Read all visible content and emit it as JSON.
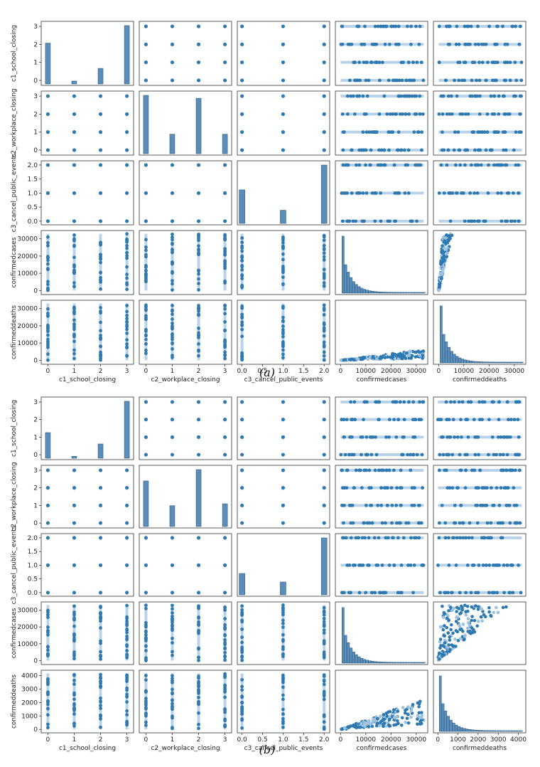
{
  "chart_data": [
    {
      "type": "scatter",
      "kind": "pairplot",
      "caption": "(a)",
      "variables": [
        "c1_school_closing",
        "c2_workplace_closing",
        "c3_cancel_public_events",
        "confirmedcases",
        "confirmeddeaths"
      ],
      "row_labels": [
        "c1_school_closing",
        "c2_workplace_closing",
        "c3_cancel_public_events",
        "confirmedcases",
        "confirmeddeaths"
      ],
      "col_labels": [
        "c1_school_closing",
        "c2_workplace_closing",
        "c3_cancel_public_events",
        "confirmedcases",
        "confirmeddeaths"
      ],
      "row_ticks": [
        [
          "0",
          "1",
          "2",
          "3"
        ],
        [
          "0",
          "1",
          "2",
          "3"
        ],
        [
          "0.0",
          "0.5",
          "1.0",
          "1.5",
          "2.0"
        ],
        [
          "0",
          "10000",
          "20000",
          "30000"
        ],
        [
          "0",
          "10000",
          "20000",
          "30000"
        ]
      ],
      "col_ticks": [
        [
          "0",
          "1",
          "2",
          "3"
        ],
        [
          "0",
          "1",
          "2",
          "3"
        ],
        [
          "0.0",
          "0.5",
          "1.0",
          "1.5",
          "2.0"
        ],
        [
          "0",
          "10000",
          "20000",
          "30000"
        ],
        [
          "0",
          "10000",
          "20000",
          "30000"
        ]
      ],
      "ranges": [
        [
          -0.2,
          3.2
        ],
        [
          -0.2,
          3.2
        ],
        [
          -0.08,
          2.1
        ],
        [
          -1500,
          34000
        ],
        [
          -1500,
          34000
        ]
      ],
      "diagonal_histograms": [
        {
          "variable": "c1_school_closing",
          "bins": [
            0,
            1,
            2,
            3
          ],
          "heights": [
            2.1,
            0.15,
            0.8,
            3.0
          ]
        },
        {
          "variable": "c2_workplace_closing",
          "bins": [
            0,
            1,
            2,
            3
          ],
          "heights": [
            3.0,
            1.0,
            2.85,
            1.0
          ]
        },
        {
          "variable": "c3_cancel_public_events",
          "bins": [
            0,
            1,
            2
          ],
          "heights": [
            1.15,
            0.45,
            2.0
          ]
        },
        {
          "variable": "confirmedcases",
          "shape": "right-skewed, sharp spike near 0"
        },
        {
          "variable": "confirmeddeaths",
          "shape": "spike near 0"
        }
      ]
    },
    {
      "type": "scatter",
      "kind": "pairplot",
      "caption": "(b)",
      "variables": [
        "c1_school_closing",
        "c2_workplace_closing",
        "c3_cancel_public_events",
        "confirmedcases",
        "confirmeddeaths"
      ],
      "row_labels": [
        "c1_school_closing",
        "c2_workplace_closing",
        "c3_cancel_public_events",
        "confirmedcases",
        "confirmeddeaths"
      ],
      "col_labels": [
        "c1_school_closing",
        "c2_workplace_closing",
        "c3_cancel_public_events",
        "confirmedcases",
        "confirmeddeaths"
      ],
      "row_ticks": [
        [
          "0",
          "1",
          "2",
          "3"
        ],
        [
          "0",
          "1",
          "2",
          "3"
        ],
        [
          "0.0",
          "0.5",
          "1.0",
          "1.5",
          "2.0"
        ],
        [
          "0",
          "10000",
          "20000",
          "30000"
        ],
        [
          "0",
          "1000",
          "2000",
          "3000",
          "4000"
        ]
      ],
      "col_ticks": [
        [
          "0",
          "1",
          "2",
          "3"
        ],
        [
          "0",
          "1",
          "2",
          "3"
        ],
        [
          "0.0",
          "0.5",
          "1.0",
          "1.5",
          "2.0"
        ],
        [
          "0",
          "10000",
          "20000",
          "30000"
        ],
        [
          "0",
          "1000",
          "2000",
          "3000",
          "4000"
        ]
      ],
      "ranges": [
        [
          -0.2,
          3.2
        ],
        [
          -0.2,
          3.2
        ],
        [
          -0.08,
          2.1
        ],
        [
          -1500,
          34000
        ],
        [
          -150,
          4300
        ]
      ],
      "diagonal_histograms": [
        {
          "variable": "c1_school_closing",
          "bins": [
            0,
            1,
            2,
            3
          ],
          "heights": [
            1.35,
            0.1,
            0.75,
            3.0
          ]
        },
        {
          "variable": "c2_workplace_closing",
          "bins": [
            0,
            1,
            2,
            3
          ],
          "heights": [
            2.4,
            1.1,
            3.0,
            1.2
          ]
        },
        {
          "variable": "c3_cancel_public_events",
          "bins": [
            0,
            1,
            2
          ],
          "heights": [
            0.75,
            0.45,
            2.0
          ]
        },
        {
          "variable": "confirmedcases",
          "shape": "right-skewed, sharp spike near 0"
        },
        {
          "variable": "confirmeddeaths",
          "shape": "spike near 0"
        }
      ]
    }
  ]
}
